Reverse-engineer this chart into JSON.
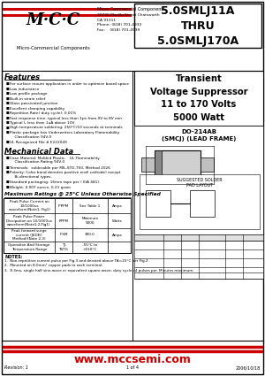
{
  "title_part": "5.0SMLJ11A\nTHRU\n5.0SMLJ170A",
  "subtitle": "Transient\nVoltage Suppressor\n11 to 170 Volts\n5000 Watt",
  "company_name": "Micro Commercial Components",
  "company_addr": "20736 Marilla Street Chatsworth\nCA 91311\nPhone: (818) 701-4933\nFax:    (818) 701-4939",
  "logo_text": "M·C·C",
  "micro_commercial": "Micro-Commercial Components",
  "package_title": "DO-214AB\n(SMCJ) (LEAD FRAME)",
  "features_title": "Features",
  "features": [
    "For surface mount application in order to optimize board space",
    "Low inductance",
    "Low profile package",
    "Built-in strain relief",
    "Glass passivated junction",
    "Excellent clamping capability",
    "Repetition Rate( duty cycle): 0.01%",
    "Fast response time: typical less than 1ps from 0V to 8V min",
    "Typical I₀ less than 1uA above 10V",
    "High temperature soldering: 250°C/10 seconds at terminals",
    "Plastic package has Underwriters Laboratory Flammability\n    Classification 94V-0",
    "UL Recognized File # E222049"
  ],
  "mech_title": "Mechanical Data",
  "mech_items": [
    "Case Material: Molded Plastic.   UL Flammability\n    Classification Rating 94V-0",
    "Terminals:  solderable per MIL-STD-750, Method 2026",
    "Polarity: Color band denotes positive end( cathode) except\n    Bi-directional types.",
    "Standard packaging: 16mm tape per ( EIA 481).",
    "Weight: 0.007 ounce, 0.21 gram"
  ],
  "ratings_title": "Maximum Ratings @ 25°C Unless Otherwise Specified",
  "ratings": [
    [
      "Peak Pulse Current on\n10/1000us\nwaveform(Note1, Fig1)",
      "IPPPM",
      "See Table 1",
      "Amps"
    ],
    [
      "Peak Pulse Power\nDissipation on 10/1000us\nwaveform(Note1,2,Fig1)",
      "PPPM",
      "Minimum\n5000",
      "Watts"
    ],
    [
      "Peak forward surge\ncurrent (JEDEC\nMethod)(Note 2,3)",
      "IFSM",
      "300.0",
      "Amps"
    ],
    [
      "Operation And Storage\nTemperature Range",
      "TJ,\nTSTG",
      "-55°C to\n+150°C",
      ""
    ]
  ],
  "notes_title": "NOTES:",
  "notes": [
    "1.  Non-repetitive current pulse per Fig.3 and derated above TA=25°C per Fig.2.",
    "2.  Mounted on 8.0mm² copper pads to each terminal.",
    "3.  8.3ms, single half sine-wave or equivalent square wave, duty cycle=4 pulses per. Minutes maximum."
  ],
  "footer_url": "www.mccsemi.com",
  "footer_revision": "Revision: 1",
  "footer_page": "1 of 4",
  "footer_date": "2006/10/18",
  "bg_color": "#ffffff",
  "border_color": "#000000",
  "red_color": "#cc0000"
}
